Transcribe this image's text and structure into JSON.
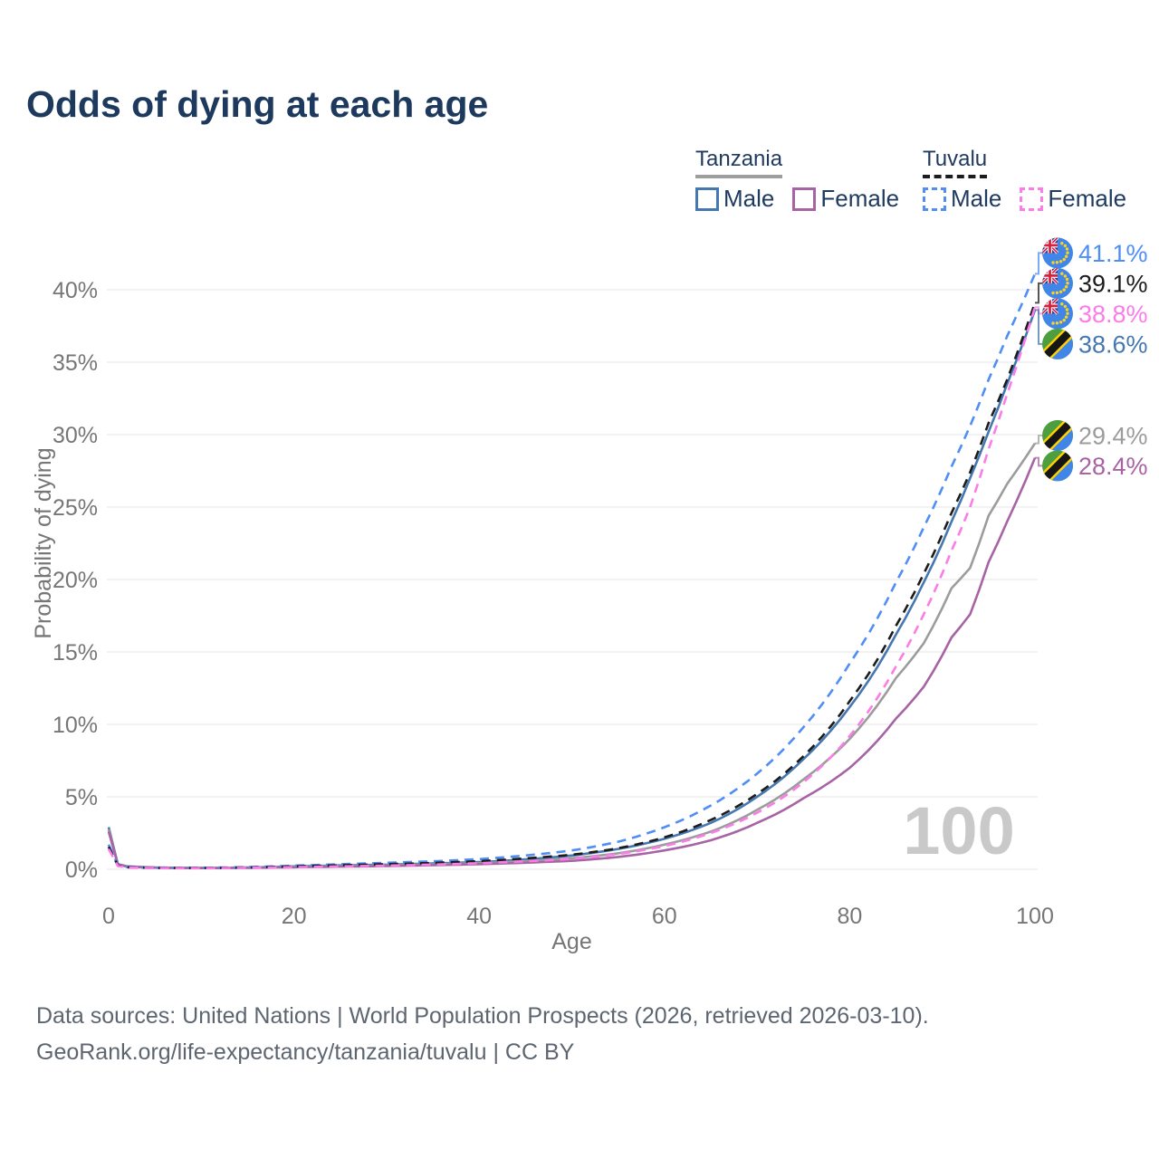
{
  "title": "Odds of dying at each age",
  "legend": {
    "groups": [
      {
        "name": "Tanzania",
        "style": "solid",
        "underline_color": "#9e9e9e",
        "items": [
          {
            "label": "Male",
            "color": "#4577b0"
          },
          {
            "label": "Female",
            "color": "#a763a4"
          }
        ]
      },
      {
        "name": "Tuvalu",
        "style": "dashed",
        "underline_color": "#1c1c1c",
        "items": [
          {
            "label": "Male",
            "color": "#4f8ef5"
          },
          {
            "label": "Female",
            "color": "#fb7ce8"
          }
        ]
      }
    ]
  },
  "chart_data": {
    "type": "line",
    "title": "Odds of dying at each age",
    "xlabel": "Age",
    "ylabel": "Probability of dying",
    "xlim": [
      0,
      100
    ],
    "ylim": [
      0,
      40
    ],
    "grid": "horizontal",
    "watermark": "100",
    "x_ticks": [
      {
        "v": 0,
        "label": "0"
      },
      {
        "v": 20,
        "label": "20"
      },
      {
        "v": 40,
        "label": "40"
      },
      {
        "v": 60,
        "label": "60"
      },
      {
        "v": 80,
        "label": "80"
      },
      {
        "v": 100,
        "label": "100"
      }
    ],
    "y_ticks": [
      {
        "v": 0,
        "label": "0%"
      },
      {
        "v": 5,
        "label": "5%"
      },
      {
        "v": 10,
        "label": "10%"
      },
      {
        "v": 15,
        "label": "15%"
      },
      {
        "v": 20,
        "label": "20%"
      },
      {
        "v": 25,
        "label": "25%"
      },
      {
        "v": 30,
        "label": "30%"
      },
      {
        "v": 35,
        "label": "35%"
      },
      {
        "v": 40,
        "label": "40%"
      }
    ],
    "ages": [
      0,
      1,
      2,
      5,
      10,
      15,
      20,
      25,
      30,
      35,
      40,
      45,
      50,
      55,
      60,
      65,
      70,
      75,
      80,
      85,
      88,
      91,
      93,
      95,
      97,
      100
    ],
    "series": [
      {
        "id": "tuvalu-male",
        "name": "Tuvalu Male",
        "color": "#4f8ef5",
        "dash": true,
        "flag": "tuvalu",
        "end_label": "41.1%",
        "values": [
          1.7,
          0.28,
          0.15,
          0.1,
          0.1,
          0.15,
          0.25,
          0.35,
          0.45,
          0.55,
          0.7,
          0.95,
          1.3,
          1.9,
          2.9,
          4.4,
          6.6,
          9.8,
          14.2,
          19.8,
          23.6,
          27.8,
          30.6,
          33.8,
          36.8,
          41.1
        ]
      },
      {
        "id": "tuvalu-both",
        "name": "Tuvalu",
        "color": "#1c1c1c",
        "dash": true,
        "flag": "tuvalu",
        "end_label": "39.1%",
        "values": [
          1.55,
          0.25,
          0.14,
          0.09,
          0.085,
          0.12,
          0.2,
          0.28,
          0.35,
          0.44,
          0.56,
          0.75,
          1.0,
          1.45,
          2.2,
          3.4,
          5.2,
          7.8,
          11.6,
          16.8,
          20.4,
          24.6,
          27.4,
          30.8,
          33.8,
          39.1
        ]
      },
      {
        "id": "tuvalu-female",
        "name": "Tuvalu Female",
        "color": "#fb7ce8",
        "dash": true,
        "flag": "tuvalu",
        "end_label": "38.8%",
        "values": [
          1.4,
          0.22,
          0.12,
          0.08,
          0.07,
          0.1,
          0.15,
          0.2,
          0.25,
          0.32,
          0.42,
          0.55,
          0.72,
          1.05,
          1.6,
          2.5,
          3.9,
          6.0,
          9.2,
          14.0,
          17.6,
          22.0,
          25.0,
          29.0,
          32.8,
          38.8
        ]
      },
      {
        "id": "tanzania-male",
        "name": "Tanzania Male",
        "color": "#4577b0",
        "dash": false,
        "flag": "tanzania",
        "end_label": "38.6%",
        "values": [
          2.9,
          0.35,
          0.2,
          0.12,
          0.09,
          0.12,
          0.2,
          0.27,
          0.32,
          0.4,
          0.5,
          0.68,
          0.95,
          1.4,
          2.1,
          3.2,
          5.0,
          7.6,
          11.2,
          16.2,
          19.8,
          24.0,
          27.0,
          30.2,
          33.5,
          38.6
        ]
      },
      {
        "id": "tanzania-both",
        "name": "Tanzania",
        "color": "#9c9c9c",
        "dash": false,
        "flag": "tanzania",
        "end_label": "29.4%",
        "values": [
          2.75,
          0.34,
          0.19,
          0.115,
          0.085,
          0.11,
          0.17,
          0.22,
          0.27,
          0.34,
          0.42,
          0.56,
          0.76,
          1.1,
          1.7,
          2.6,
          4.1,
          6.2,
          9.0,
          13.2,
          15.6,
          19.4,
          20.8,
          24.4,
          26.6,
          29.4
        ]
      },
      {
        "id": "tanzania-female",
        "name": "Tanzania Female",
        "color": "#a763a4",
        "dash": false,
        "flag": "tanzania",
        "end_label": "28.4%",
        "values": [
          2.6,
          0.32,
          0.18,
          0.11,
          0.08,
          0.1,
          0.14,
          0.18,
          0.22,
          0.28,
          0.35,
          0.45,
          0.58,
          0.85,
          1.3,
          2.0,
          3.2,
          4.9,
          7.0,
          10.4,
          12.6,
          16.0,
          17.6,
          21.2,
          24.0,
          28.4
        ]
      }
    ]
  },
  "source": {
    "line1": "Data sources: United Nations | World Population Prospects (2026, retrieved 2026-03-10).",
    "line2": "GeoRank.org/life-expectancy/tanzania/tuvalu | CC BY"
  }
}
